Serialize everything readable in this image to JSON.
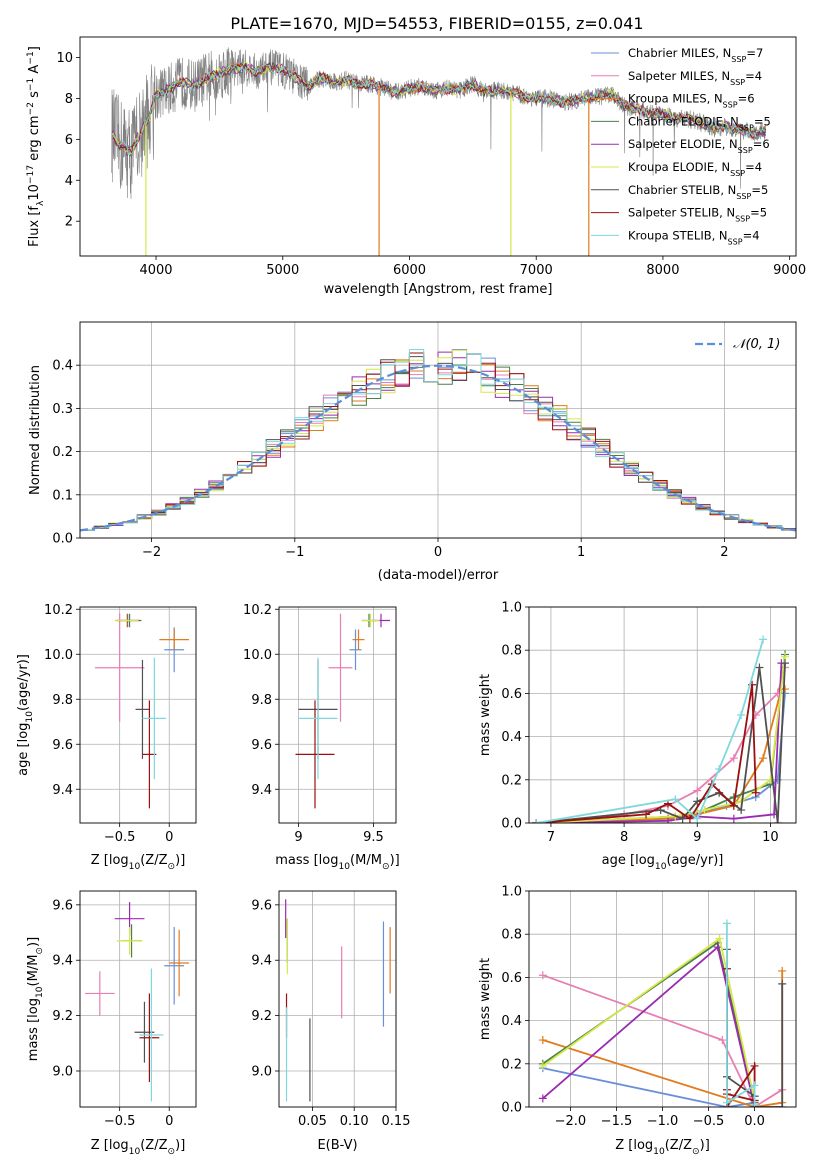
{
  "figure": {
    "title": "PLATE=1670, MJD=54553, FIBERID=0155, z=0.041"
  },
  "colors": {
    "chabrier_miles": "#6a8fd8",
    "salpeter_miles": "#e87fb3",
    "kroupa_miles": "#e07b1e",
    "chabrier_elodie": "#4a7f4a",
    "salpeter_elodie": "#9a2bb0",
    "kroupa_elodie": "#d6e84a",
    "chabrier_stelib": "#505050",
    "salpeter_stelib": "#9b1010",
    "kroupa_stelib": "#7ed8dc",
    "data_grey": "#808080",
    "gauss": "#5b8ed8",
    "grid": "#b0b0b0"
  },
  "chart_data": [
    {
      "id": "spectrum",
      "type": "line",
      "xlabel": "wavelength [Angstrom, rest frame]",
      "ylabel_main": "Flux [f",
      "ylabel_sub": "λ",
      "ylabel_mid": "10",
      "ylabel_sup": "−17",
      "ylabel_tail": " erg cm",
      "ylabel_sup2": "−2",
      "ylabel_tail2": " s",
      "ylabel_sup3": "−1",
      "ylabel_tail3": " A",
      "ylabel_sup4": "−1",
      "ylabel_end": "]",
      "xlim": [
        3400,
        9050
      ],
      "ylim": [
        0.3,
        11
      ],
      "xticks": [
        4000,
        5000,
        6000,
        7000,
        8000,
        9000
      ],
      "yticks": [
        2,
        4,
        6,
        8,
        10
      ],
      "grid": false,
      "legend_position": "top-right",
      "legend": [
        {
          "pre": "Chabrier MILES, N",
          "sub": "SSP",
          "post": "=7",
          "color": "chabrier_miles"
        },
        {
          "pre": "Salpeter MILES, N",
          "sub": "SSP",
          "post": "=4",
          "color": "salpeter_miles"
        },
        {
          "pre": "Kroupa MILES, N",
          "sub": "SSP",
          "post": "=6",
          "color": "kroupa_miles"
        },
        {
          "pre": "Chabrier ELODIE, N",
          "sub": "SSP",
          "post": "=5",
          "color": "chabrier_elodie"
        },
        {
          "pre": "Salpeter ELODIE, N",
          "sub": "SSP",
          "post": "=6",
          "color": "salpeter_elodie"
        },
        {
          "pre": "Kroupa ELODIE, N",
          "sub": "SSP",
          "post": "=4",
          "color": "kroupa_elodie"
        },
        {
          "pre": "Chabrier STELIB, N",
          "sub": "SSP",
          "post": "=5",
          "color": "chabrier_stelib"
        },
        {
          "pre": "Salpeter STELIB, N",
          "sub": "SSP",
          "post": "=5",
          "color": "salpeter_stelib"
        },
        {
          "pre": "Kroupa STELIB, N",
          "sub": "SSP",
          "post": "=4",
          "color": "kroupa_stelib"
        }
      ],
      "continuum": {
        "x": [
          3650,
          3700,
          3750,
          3800,
          3850,
          3900,
          3950,
          4000,
          4100,
          4200,
          4300,
          4400,
          4500,
          4600,
          4700,
          4800,
          4900,
          5000,
          5100,
          5200,
          5300,
          5400,
          5500,
          5600,
          5700,
          5800,
          5900,
          6000,
          6100,
          6200,
          6300,
          6400,
          6500,
          6600,
          6700,
          6800,
          6900,
          7000,
          7100,
          7200,
          7300,
          7400,
          7500,
          7600,
          7700,
          7800,
          7900,
          8000,
          8100,
          8200,
          8300,
          8400,
          8500,
          8600,
          8700,
          8800
        ],
        "y": [
          6.3,
          5.8,
          5.6,
          5.3,
          6.0,
          6.6,
          7.2,
          8.2,
          8.4,
          8.8,
          8.6,
          9.0,
          9.2,
          9.5,
          9.5,
          9.3,
          9.5,
          9.4,
          9.0,
          8.6,
          9.0,
          8.8,
          8.9,
          8.7,
          8.7,
          8.5,
          8.3,
          8.5,
          8.6,
          8.4,
          8.5,
          8.4,
          8.7,
          8.3,
          8.4,
          8.3,
          8.1,
          8.0,
          8.0,
          7.8,
          7.9,
          8.0,
          8.1,
          8.2,
          7.6,
          7.5,
          7.3,
          7.2,
          7.0,
          7.0,
          6.8,
          6.6,
          6.6,
          6.5,
          6.3,
          6.4
        ]
      }
    },
    {
      "id": "residuals",
      "type": "line",
      "xlabel": "(data-model)/error",
      "ylabel": "Normed distribution",
      "xlim": [
        -2.5,
        2.5
      ],
      "ylim": [
        0,
        0.5
      ],
      "xticks": [
        -2,
        -1,
        0,
        1,
        2
      ],
      "yticks": [
        0.0,
        0.1,
        0.2,
        0.3,
        0.4
      ],
      "grid": true,
      "legend_position": "top-right",
      "legend_label": "𝒩(0, 1)"
    },
    {
      "id": "age_Z",
      "type": "scatter",
      "xlabel_pre": "Z [log",
      "xlabel_sub": "10",
      "xlabel_post": "(Z/Z",
      "xlabel_sub2": "⊙",
      "xlabel_end": ")]",
      "ylabel_pre": "age  [log",
      "ylabel_sub": "10",
      "ylabel_post": "(age/yr)]",
      "xlim": [
        -0.9,
        0.27
      ],
      "ylim": [
        9.25,
        10.21
      ],
      "xticks": [
        -0.5,
        0.0
      ],
      "yticks": [
        9.4,
        9.6,
        9.8,
        10.0,
        10.2
      ],
      "grid": true,
      "points": [
        {
          "model": "chabrier_miles",
          "x": 0.05,
          "y": 10.02,
          "xerr": 0.1,
          "yerr": 0.1
        },
        {
          "model": "salpeter_miles",
          "x": -0.5,
          "y": 9.94,
          "xerr": 0.25,
          "yerr": 0.24
        },
        {
          "model": "kroupa_miles",
          "x": 0.05,
          "y": 10.065,
          "xerr": 0.15,
          "yerr": 0.045
        },
        {
          "model": "chabrier_elodie",
          "x": -0.4,
          "y": 10.15,
          "xerr": 0.12,
          "yerr": 0.03
        },
        {
          "model": "salpeter_elodie",
          "x": -0.42,
          "y": 10.15,
          "xerr": 0.12,
          "yerr": 0.03
        },
        {
          "model": "kroupa_elodie",
          "x": -0.43,
          "y": 10.15,
          "xerr": 0.12,
          "yerr": 0.03
        },
        {
          "model": "chabrier_stelib",
          "x": -0.27,
          "y": 9.755,
          "xerr": 0.07,
          "yerr": 0.22
        },
        {
          "model": "salpeter_stelib",
          "x": -0.2,
          "y": 9.555,
          "xerr": 0.07,
          "yerr": 0.24
        },
        {
          "model": "kroupa_stelib",
          "x": -0.15,
          "y": 9.715,
          "xerr": 0.12,
          "yerr": 0.27
        }
      ]
    },
    {
      "id": "age_mass",
      "type": "scatter",
      "xlabel_pre": "mass [log",
      "xlabel_sub": "10",
      "xlabel_post": "(M/M",
      "xlabel_sub2": "⊙",
      "xlabel_end": ")]",
      "xlim": [
        8.87,
        9.65
      ],
      "ylim": [
        9.25,
        10.21
      ],
      "xticks": [
        9.0,
        9.5
      ],
      "yticks": [
        9.4,
        9.6,
        9.8,
        10.0,
        10.2
      ],
      "grid": true,
      "points": [
        {
          "model": "chabrier_miles",
          "x": 9.38,
          "y": 10.02,
          "xerr": 0.04,
          "yerr": 0.09
        },
        {
          "model": "salpeter_miles",
          "x": 9.28,
          "y": 9.94,
          "xerr": 0.08,
          "yerr": 0.24
        },
        {
          "model": "kroupa_miles",
          "x": 9.4,
          "y": 10.065,
          "xerr": 0.04,
          "yerr": 0.045
        },
        {
          "model": "chabrier_elodie",
          "x": 9.47,
          "y": 10.15,
          "xerr": 0.05,
          "yerr": 0.03
        },
        {
          "model": "salpeter_elodie",
          "x": 9.55,
          "y": 10.15,
          "xerr": 0.06,
          "yerr": 0.03
        },
        {
          "model": "kroupa_elodie",
          "x": 9.48,
          "y": 10.15,
          "xerr": 0.06,
          "yerr": 0.03
        },
        {
          "model": "chabrier_stelib",
          "x": 9.13,
          "y": 9.755,
          "xerr": 0.13,
          "yerr": 0.22
        },
        {
          "model": "salpeter_stelib",
          "x": 9.11,
          "y": 9.555,
          "xerr": 0.13,
          "yerr": 0.24
        },
        {
          "model": "kroupa_stelib",
          "x": 9.13,
          "y": 9.715,
          "xerr": 0.13,
          "yerr": 0.27
        }
      ]
    },
    {
      "id": "massweight_age",
      "type": "line",
      "xlabel_pre": "age  [log",
      "xlabel_sub": "10",
      "xlabel_post": "(age/yr)]",
      "ylabel": "mass weight",
      "xlim": [
        6.7,
        10.35
      ],
      "ylim": [
        0,
        1.0
      ],
      "xticks": [
        7,
        8,
        9,
        10
      ],
      "yticks": [
        0.0,
        0.2,
        0.4,
        0.6,
        0.8,
        1.0
      ],
      "grid": true,
      "series": [
        {
          "model": "chabrier_miles",
          "x": [
            6.8,
            8.6,
            9.0,
            9.4,
            9.8,
            10.1,
            10.2
          ],
          "y": [
            0.0,
            0.02,
            0.04,
            0.08,
            0.12,
            0.2,
            0.6
          ]
        },
        {
          "model": "salpeter_miles",
          "x": [
            6.8,
            8.0,
            8.6,
            9.0,
            9.5,
            9.8,
            10.1,
            10.2
          ],
          "y": [
            0.0,
            0.04,
            0.08,
            0.15,
            0.3,
            0.5,
            0.6,
            0.72
          ]
        },
        {
          "model": "kroupa_miles",
          "x": [
            6.8,
            8.6,
            9.0,
            9.5,
            9.9,
            10.15,
            10.2
          ],
          "y": [
            0.0,
            0.02,
            0.04,
            0.08,
            0.3,
            0.62,
            0.62
          ]
        },
        {
          "model": "chabrier_elodie",
          "x": [
            6.8,
            8.7,
            9.1,
            9.5,
            10.0,
            10.2
          ],
          "y": [
            0.0,
            0.03,
            0.06,
            0.12,
            0.18,
            0.78
          ]
        },
        {
          "model": "salpeter_elodie",
          "x": [
            6.8,
            8.6,
            9.0,
            9.5,
            10.05,
            10.15
          ],
          "y": [
            0.0,
            0.01,
            0.03,
            0.02,
            0.04,
            0.74
          ]
        },
        {
          "model": "kroupa_elodie",
          "x": [
            6.8,
            8.7,
            9.1,
            9.6,
            10.0,
            10.2
          ],
          "y": [
            0.0,
            0.03,
            0.06,
            0.1,
            0.2,
            0.77
          ]
        },
        {
          "model": "chabrier_stelib",
          "x": [
            6.8,
            8.5,
            8.8,
            9.0,
            9.3,
            9.6,
            9.85,
            10.1,
            10.2
          ],
          "y": [
            0.0,
            0.06,
            0.02,
            0.1,
            0.14,
            0.06,
            0.72,
            0.0,
            0.74
          ]
        },
        {
          "model": "salpeter_stelib",
          "x": [
            6.8,
            8.3,
            8.6,
            8.9,
            9.2,
            9.5,
            9.75,
            9.8
          ],
          "y": [
            0.0,
            0.04,
            0.09,
            0.02,
            0.18,
            0.08,
            0.64,
            0.14
          ]
        },
        {
          "model": "kroupa_stelib",
          "x": [
            6.8,
            8.7,
            9.0,
            9.3,
            9.6,
            9.9
          ],
          "y": [
            0.0,
            0.11,
            0.02,
            0.25,
            0.5,
            0.85
          ]
        }
      ]
    },
    {
      "id": "mass_Z",
      "type": "scatter",
      "xlabel_pre": "Z [log",
      "xlabel_sub": "10",
      "xlabel_post": "(Z/Z",
      "xlabel_sub2": "⊙",
      "xlabel_end": ")]",
      "ylabel_pre": "mass [log",
      "ylabel_sub": "10",
      "ylabel_post": "(M/M",
      "ylabel_sub2": "⊙",
      "ylabel_end": ")]",
      "xlim": [
        -0.9,
        0.27
      ],
      "ylim": [
        8.87,
        9.65
      ],
      "xticks": [
        -0.5,
        0.0
      ],
      "yticks": [
        9.0,
        9.2,
        9.4,
        9.6
      ],
      "grid": true,
      "points": [
        {
          "model": "chabrier_miles",
          "x": 0.05,
          "y": 9.38,
          "xerr": 0.1,
          "yerr": 0.14
        },
        {
          "model": "salpeter_miles",
          "x": -0.7,
          "y": 9.28,
          "xerr": 0.15,
          "yerr": 0.08
        },
        {
          "model": "kroupa_miles",
          "x": 0.1,
          "y": 9.39,
          "xerr": 0.1,
          "yerr": 0.12
        },
        {
          "model": "chabrier_elodie",
          "x": -0.38,
          "y": 9.47,
          "xerr": 0.1,
          "yerr": 0.06
        },
        {
          "model": "salpeter_elodie",
          "x": -0.4,
          "y": 9.55,
          "xerr": 0.15,
          "yerr": 0.06
        },
        {
          "model": "kroupa_elodie",
          "x": -0.4,
          "y": 9.47,
          "xerr": 0.13,
          "yerr": 0.05
        },
        {
          "model": "chabrier_stelib",
          "x": -0.25,
          "y": 9.14,
          "xerr": 0.1,
          "yerr": 0.11
        },
        {
          "model": "salpeter_stelib",
          "x": -0.2,
          "y": 9.12,
          "xerr": 0.1,
          "yerr": 0.16
        },
        {
          "model": "kroupa_stelib",
          "x": -0.18,
          "y": 9.13,
          "xerr": 0.12,
          "yerr": 0.24
        }
      ]
    },
    {
      "id": "mass_ebv",
      "type": "scatter",
      "xlabel": "E(B-V)",
      "xlim": [
        0.01,
        0.15
      ],
      "ylim": [
        8.87,
        9.65
      ],
      "xticks": [
        0.05,
        0.1,
        0.15
      ],
      "xtick_labels": [
        "0.05",
        "0.10",
        "0.15"
      ],
      "yticks": [
        9.0,
        9.2,
        9.4,
        9.6
      ],
      "grid": true,
      "points": [
        {
          "model": "chabrier_miles",
          "x": 0.135,
          "y": 9.35,
          "yerr": 0.19
        },
        {
          "model": "salpeter_miles",
          "x": 0.085,
          "y": 9.32,
          "yerr": 0.13
        },
        {
          "model": "kroupa_miles",
          "x": 0.143,
          "y": 9.4,
          "yerr": 0.12
        },
        {
          "model": "chabrier_elodie",
          "x": 0.02,
          "y": 9.47,
          "yerr": 0.08
        },
        {
          "model": "salpeter_elodie",
          "x": 0.018,
          "y": 9.55,
          "yerr": 0.07
        },
        {
          "model": "kroupa_elodie",
          "x": 0.02,
          "y": 9.45,
          "yerr": 0.1
        },
        {
          "model": "chabrier_stelib",
          "x": 0.047,
          "y": 9.04,
          "yerr": 0.15
        },
        {
          "model": "salpeter_stelib",
          "x": 0.019,
          "y": 9.2,
          "yerr": 0.08
        },
        {
          "model": "kroupa_stelib",
          "x": 0.019,
          "y": 9.06,
          "yerr": 0.17
        }
      ]
    },
    {
      "id": "massweight_Z",
      "type": "line",
      "xlabel_pre": "Z [log",
      "xlabel_sub": "10",
      "xlabel_post": "(Z/Z",
      "xlabel_sub2": "⊙",
      "xlabel_end": ")]",
      "ylabel": "mass weight",
      "xlim": [
        -2.45,
        0.45
      ],
      "ylim": [
        0,
        1.0
      ],
      "xticks": [
        -2.0,
        -1.5,
        -1.0,
        -0.5,
        0.0
      ],
      "xtick_labels": [
        "−2.0",
        "−1.5",
        "−1.0",
        "−0.5",
        "0.0"
      ],
      "yticks": [
        0.0,
        0.2,
        0.4,
        0.6,
        0.8,
        1.0
      ],
      "grid": true,
      "series": [
        {
          "model": "chabrier_miles",
          "x": [
            -2.3,
            -0.3,
            0.0,
            0.0
          ],
          "y": [
            0.18,
            0.0,
            0.02,
            0.05
          ]
        },
        {
          "model": "salpeter_miles",
          "x": [
            -2.3,
            -0.35,
            0.0,
            0.3
          ],
          "y": [
            0.61,
            0.31,
            0.0,
            0.08
          ]
        },
        {
          "model": "kroupa_miles",
          "x": [
            -2.3,
            0.0,
            0.3,
            0.3
          ],
          "y": [
            0.31,
            0.0,
            0.02,
            0.63
          ]
        },
        {
          "model": "chabrier_elodie",
          "x": [
            -2.3,
            -0.4,
            0.0
          ],
          "y": [
            0.2,
            0.76,
            0.02
          ]
        },
        {
          "model": "salpeter_elodie",
          "x": [
            -2.3,
            -0.4,
            0.0
          ],
          "y": [
            0.04,
            0.74,
            0.0
          ]
        },
        {
          "model": "kroupa_elodie",
          "x": [
            -2.3,
            -0.38,
            0.0
          ],
          "y": [
            0.19,
            0.78,
            0.03
          ]
        },
        {
          "model": "chabrier_stelib",
          "x": [
            -0.3,
            -0.3,
            0.0,
            0.0,
            0.3,
            0.3
          ],
          "y": [
            0.73,
            0.14,
            0.05,
            0.0,
            0.0,
            0.57
          ]
        },
        {
          "model": "salpeter_stelib",
          "x": [
            -0.3,
            -0.3,
            -0.3,
            0.0,
            0.0,
            -0.3
          ],
          "y": [
            0.64,
            0.08,
            0.0,
            0.19,
            0.03,
            0.06
          ]
        },
        {
          "model": "kroupa_stelib",
          "x": [
            -0.3,
            -0.3,
            0.0,
            0.0
          ],
          "y": [
            0.85,
            0.02,
            0.1,
            0.01
          ]
        }
      ]
    }
  ]
}
